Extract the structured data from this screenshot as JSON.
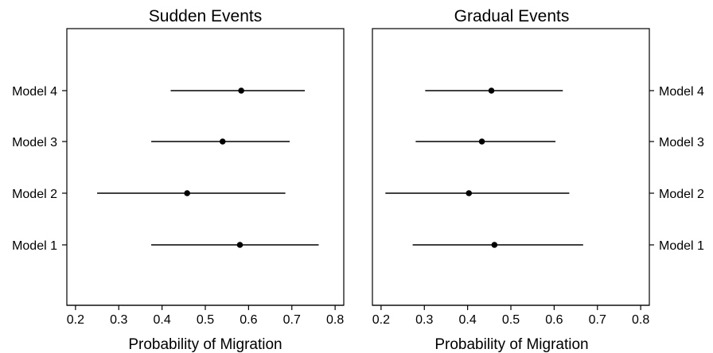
{
  "chart_data": [
    {
      "type": "scatter",
      "title": "Sudden Events",
      "xlabel": "Probability of Migration",
      "xlim": [
        0.18,
        0.82
      ],
      "xticks": [
        "0.2",
        "0.3",
        "0.4",
        "0.5",
        "0.6",
        "0.7",
        "0.8"
      ],
      "categories": [
        "Model 4",
        "Model 3",
        "Model 2",
        "Model 1"
      ],
      "points": [
        {
          "label": "Model 4",
          "estimate": 0.583,
          "lower": 0.42,
          "upper": 0.73
        },
        {
          "label": "Model 3",
          "estimate": 0.54,
          "lower": 0.375,
          "upper": 0.695
        },
        {
          "label": "Model 2",
          "estimate": 0.458,
          "lower": 0.25,
          "upper": 0.685
        },
        {
          "label": "Model 1",
          "estimate": 0.58,
          "lower": 0.375,
          "upper": 0.762
        }
      ],
      "category_axis_side": "left",
      "grid": false
    },
    {
      "type": "scatter",
      "title": "Gradual Events",
      "xlabel": "Probability of Migration",
      "xlim": [
        0.18,
        0.82
      ],
      "xticks": [
        "0.2",
        "0.3",
        "0.4",
        "0.5",
        "0.6",
        "0.7",
        "0.8"
      ],
      "categories": [
        "Model 4",
        "Model 3",
        "Model 2",
        "Model 1"
      ],
      "points": [
        {
          "label": "Model 4",
          "estimate": 0.455,
          "lower": 0.302,
          "upper": 0.62
        },
        {
          "label": "Model 3",
          "estimate": 0.433,
          "lower": 0.28,
          "upper": 0.603
        },
        {
          "label": "Model 2",
          "estimate": 0.403,
          "lower": 0.21,
          "upper": 0.635
        },
        {
          "label": "Model 1",
          "estimate": 0.462,
          "lower": 0.273,
          "upper": 0.667
        }
      ],
      "category_axis_side": "right",
      "grid": false
    }
  ]
}
